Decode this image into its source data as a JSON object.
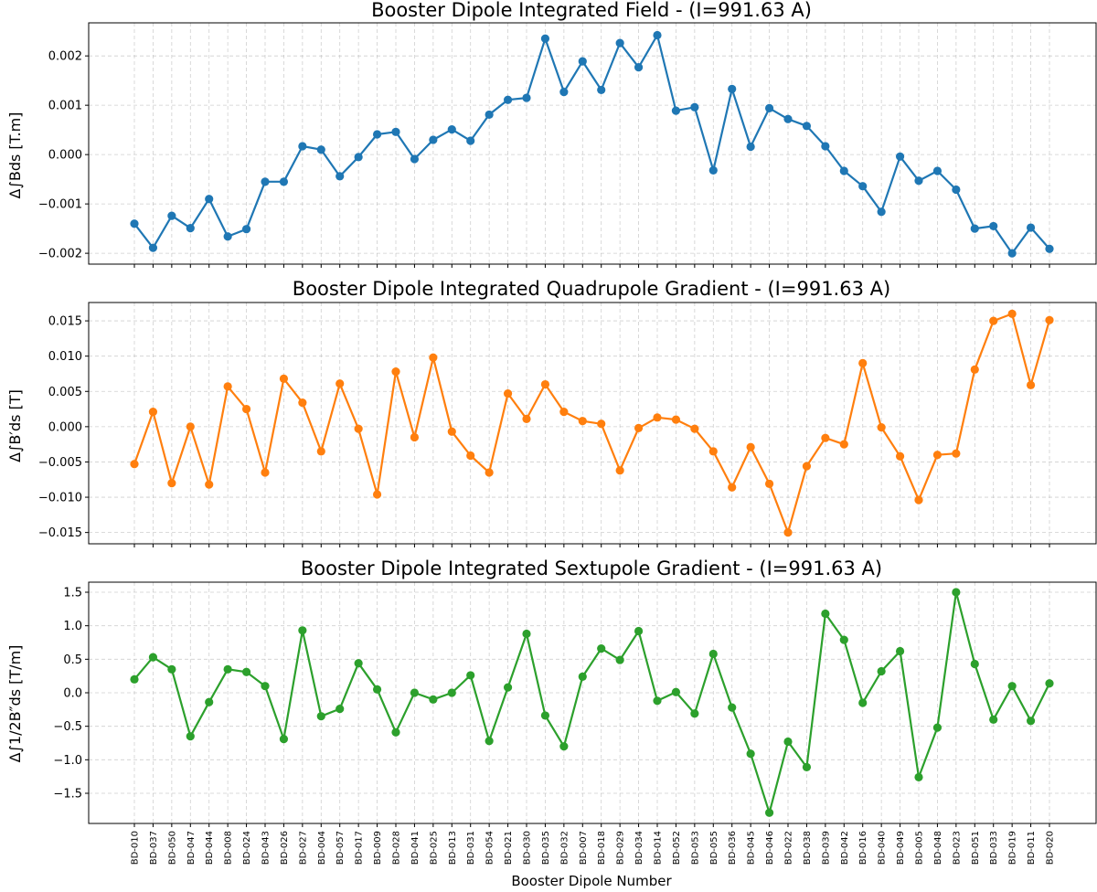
{
  "xlabel": "Booster Dipole Number",
  "categories": [
    "BD-010",
    "BD-037",
    "BD-050",
    "BD-047",
    "BD-044",
    "BD-008",
    "BD-024",
    "BD-043",
    "BD-026",
    "BD-027",
    "BD-004",
    "BD-057",
    "BD-017",
    "BD-009",
    "BD-028",
    "BD-041",
    "BD-025",
    "BD-013",
    "BD-031",
    "BD-054",
    "BD-021",
    "BD-030",
    "BD-035",
    "BD-032",
    "BD-007",
    "BD-018",
    "BD-029",
    "BD-034",
    "BD-014",
    "BD-052",
    "BD-053",
    "BD-055",
    "BD-036",
    "BD-045",
    "BD-046",
    "BD-022",
    "BD-038",
    "BD-039",
    "BD-042",
    "BD-016",
    "BD-040",
    "BD-049",
    "BD-005",
    "BD-048",
    "BD-023",
    "BD-051",
    "BD-033",
    "BD-019",
    "BD-011",
    "BD-020"
  ],
  "chart_data": [
    {
      "type": "line",
      "title": "Booster Dipole Integrated Field - (I=991.63 A)",
      "ylabel": "Δ∫Bds [T.m]",
      "color": "#1f77b4",
      "grid": true,
      "ylim": [
        -0.00222,
        0.00267
      ],
      "yticks": [
        -0.002,
        -0.001,
        0.0,
        0.001,
        0.002
      ],
      "ytick_labels": [
        "−0.002",
        "−0.001",
        "0.000",
        "0.001",
        "0.002"
      ],
      "values": [
        -0.0014,
        -0.00189,
        -0.00124,
        -0.00149,
        -0.0009,
        -0.00166,
        -0.00151,
        -0.00055,
        -0.00055,
        0.00017,
        0.0001,
        -0.00044,
        -5e-05,
        0.00041,
        0.00046,
        -9e-05,
        0.0003,
        0.00051,
        0.00028,
        0.00081,
        0.00111,
        0.00115,
        0.00235,
        0.00127,
        0.00189,
        0.00131,
        0.00226,
        0.00177,
        0.00242,
        0.00089,
        0.00096,
        -0.00032,
        0.00133,
        0.00016,
        0.00094,
        0.00072,
        0.00058,
        0.00017,
        -0.00033,
        -0.00064,
        -0.00116,
        -4e-05,
        -0.00053,
        -0.00033,
        -0.00071,
        -0.0015,
        -0.00145,
        -0.002,
        -0.00148,
        -0.00191
      ]
    },
    {
      "type": "line",
      "title": "Booster Dipole Integrated Quadrupole Gradient - (I=991.63 A)",
      "ylabel": "Δ∫B′ds [T]",
      "color": "#ff7f0e",
      "grid": true,
      "ylim": [
        -0.0166,
        0.0176
      ],
      "yticks": [
        -0.015,
        -0.01,
        -0.005,
        0.0,
        0.005,
        0.01,
        0.015
      ],
      "ytick_labels": [
        "−0.015",
        "−0.010",
        "−0.005",
        "0.000",
        "0.005",
        "0.010",
        "0.015"
      ],
      "values": [
        -0.0053,
        0.0021,
        -0.008,
        0.0,
        -0.0082,
        0.0057,
        0.0025,
        -0.0065,
        0.0068,
        0.0034,
        -0.0035,
        0.0061,
        -0.0003,
        -0.0096,
        0.0078,
        -0.0015,
        0.0098,
        -0.0007,
        -0.0041,
        -0.0065,
        0.0047,
        0.0011,
        0.006,
        0.0021,
        0.0008,
        0.0004,
        -0.0062,
        -0.0002,
        0.0013,
        0.001,
        -0.0003,
        -0.0035,
        -0.0086,
        -0.0029,
        -0.0081,
        -0.015,
        -0.0056,
        -0.0016,
        -0.0025,
        0.009,
        -0.0001,
        -0.0042,
        -0.0104,
        -0.004,
        -0.0038,
        0.0081,
        0.015,
        0.016,
        0.0059,
        0.0151
      ]
    },
    {
      "type": "line",
      "title": "Booster Dipole Integrated Sextupole Gradient - (I=991.63 A)",
      "ylabel": "Δ∫1/2B″ds [T/m]",
      "color": "#2ca02c",
      "grid": true,
      "ylim": [
        -1.95,
        1.65
      ],
      "yticks": [
        -1.5,
        -1.0,
        -0.5,
        0.0,
        0.5,
        1.0,
        1.5
      ],
      "ytick_labels": [
        "−1.5",
        "−1.0",
        "−0.5",
        "0.0",
        "0.5",
        "1.0",
        "1.5"
      ],
      "values": [
        0.2,
        0.53,
        0.35,
        -0.65,
        -0.14,
        0.35,
        0.31,
        0.1,
        -0.69,
        0.93,
        -0.35,
        -0.24,
        0.44,
        0.05,
        -0.59,
        0.0,
        -0.1,
        0.0,
        0.26,
        -0.72,
        0.08,
        0.88,
        -0.34,
        -0.8,
        0.24,
        0.66,
        0.49,
        0.92,
        -0.12,
        0.01,
        -0.31,
        0.58,
        -0.22,
        -0.91,
        -1.79,
        -0.73,
        -1.11,
        1.18,
        0.79,
        -0.15,
        0.32,
        0.62,
        -1.26,
        -0.52,
        1.5,
        0.43,
        -0.4,
        0.1,
        -0.42,
        0.14
      ]
    }
  ]
}
